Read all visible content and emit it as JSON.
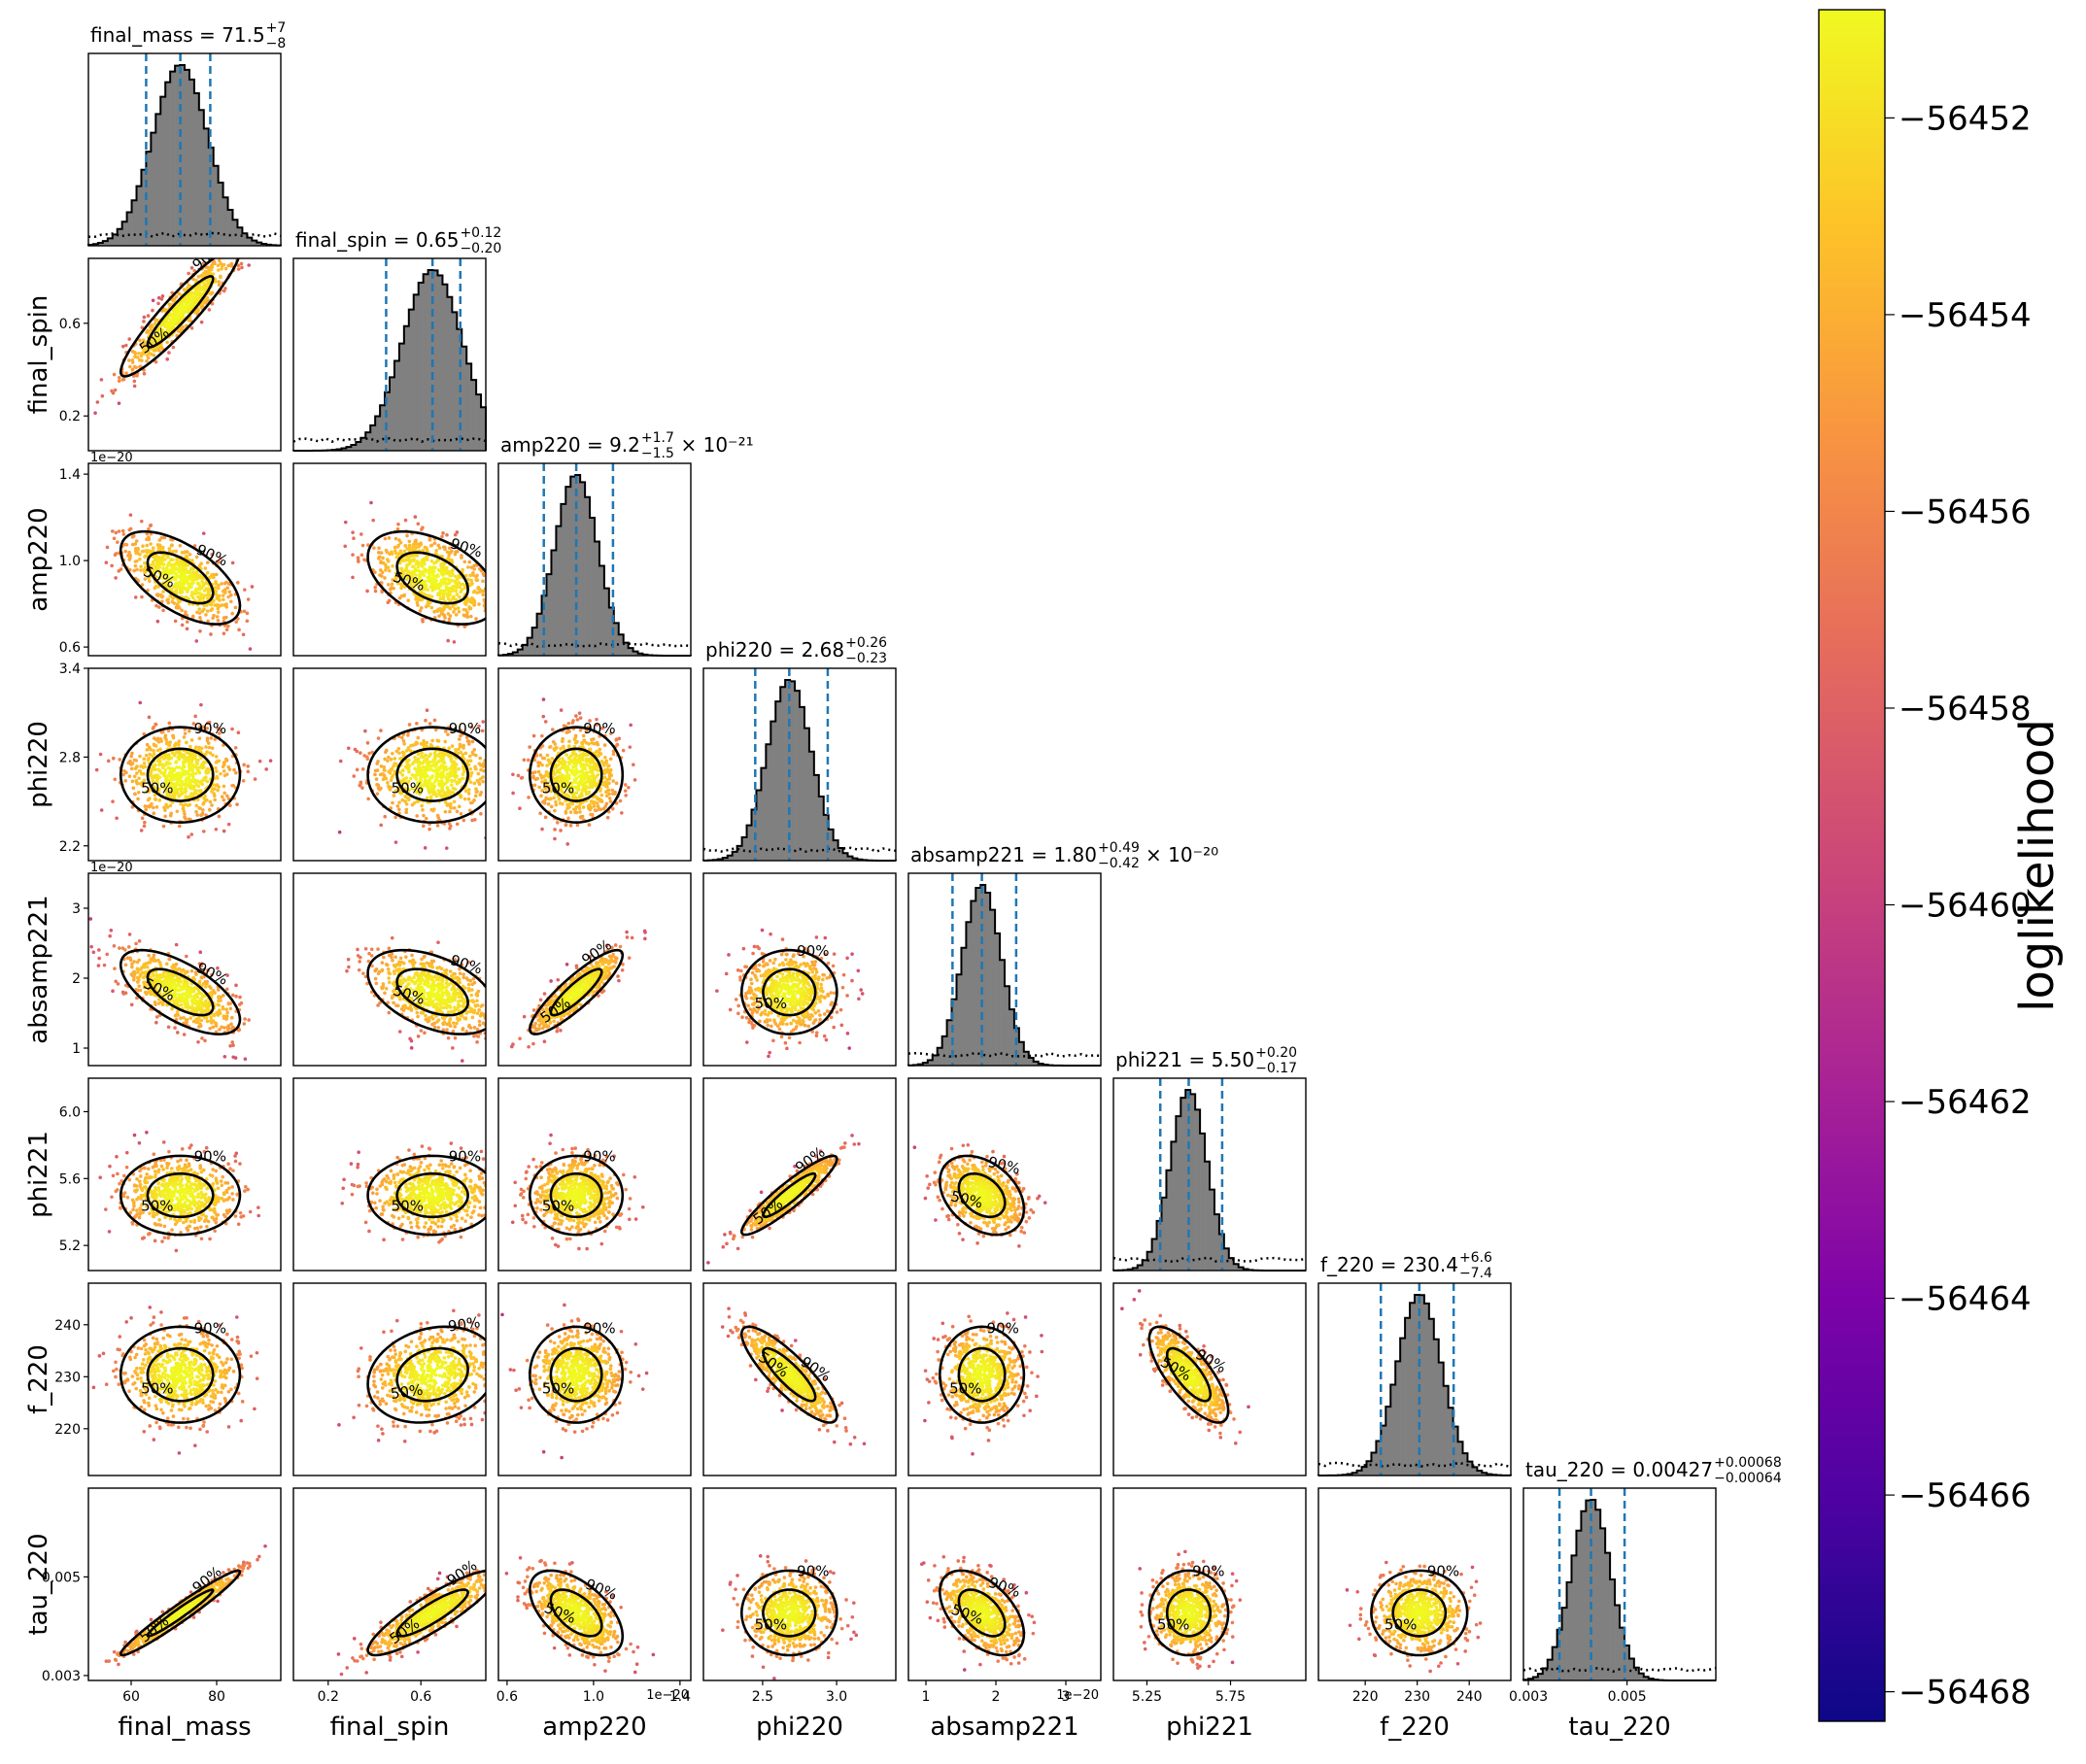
{
  "chart_data": {
    "type": "corner",
    "colormap": "plasma",
    "colorbar": {
      "label": "loglikelihood",
      "ticks": [
        "−56452",
        "−56454",
        "−56456",
        "−56458",
        "−56460",
        "−56462",
        "−56464",
        "−56466",
        "−56468"
      ],
      "tick_values": [
        -56452,
        -56454,
        -56456,
        -56458,
        -56460,
        -56462,
        -56464,
        -56466,
        -56468
      ],
      "range": [
        -56468.3,
        -56450.9
      ]
    },
    "contour_levels": [
      "50%",
      "90%"
    ],
    "parameters": [
      {
        "name": "final_mass",
        "median_text": "71.5",
        "upper": "+7",
        "lower": "−8",
        "exp": "",
        "range": [
          50,
          95
        ],
        "median": 71.5,
        "sd": 6.5,
        "ticks": [
          60,
          80
        ],
        "tick_labels": [
          "60",
          "80"
        ],
        "offset_text": ""
      },
      {
        "name": "final_spin",
        "median_text": "0.65",
        "upper": "+0.12",
        "lower": "−0.20",
        "exp": "",
        "range": [
          0.05,
          0.88
        ],
        "median": 0.65,
        "sd": 0.13,
        "ticks": [
          0.2,
          0.6
        ],
        "tick_labels": [
          "0.2",
          "0.6"
        ],
        "offset_text": ""
      },
      {
        "name": "amp220",
        "median_text": "9.2",
        "upper": "+1.7",
        "lower": "−1.5",
        "exp": "× 10⁻²¹",
        "range": [
          0.56,
          1.45
        ],
        "median": 0.92,
        "sd": 0.1,
        "ticks": [
          0.6,
          1.0,
          1.4
        ],
        "tick_labels": [
          "0.6",
          "1.0",
          "1.4"
        ],
        "offset_text": "1e−20"
      },
      {
        "name": "phi220",
        "median_text": "2.68",
        "upper": "+0.26",
        "lower": "−0.23",
        "exp": "",
        "range": [
          2.1,
          3.4
        ],
        "median": 2.68,
        "sd": 0.15,
        "ticks": [
          2.5,
          3.0
        ],
        "tick_labels": [
          "2.5",
          "3.0"
        ],
        "offset_text": ""
      },
      {
        "name": "absamp221",
        "median_text": "1.80",
        "upper": "+0.49",
        "lower": "−0.42",
        "exp": "× 10⁻²⁰",
        "range": [
          0.75,
          3.5
        ],
        "median": 1.8,
        "sd": 0.28,
        "ticks": [
          1,
          2,
          3
        ],
        "tick_labels": [
          "1",
          "2",
          "3"
        ],
        "offset_text": "1e−20"
      },
      {
        "name": "phi221",
        "median_text": "5.50",
        "upper": "+0.20",
        "lower": "−0.17",
        "exp": "",
        "range": [
          5.05,
          6.2
        ],
        "median": 5.5,
        "sd": 0.11,
        "ticks": [
          5.25,
          5.75
        ],
        "tick_labels": [
          "5.25",
          "5.75"
        ],
        "offset_text": ""
      },
      {
        "name": "f_220",
        "median_text": "230.4",
        "upper": "+6.6",
        "lower": "−7.4",
        "exp": "",
        "range": [
          211,
          248
        ],
        "median": 230.4,
        "sd": 4.3,
        "ticks": [
          220,
          230,
          240
        ],
        "tick_labels": [
          "220",
          "230",
          "240"
        ],
        "offset_text": ""
      },
      {
        "name": "tau_220",
        "median_text": "0.00427",
        "upper": "+0.00068",
        "lower": "−0.00064",
        "exp": "",
        "range": [
          0.0029,
          0.0068
        ],
        "median": 0.00427,
        "sd": 0.0004,
        "ticks": [
          0.003,
          0.005
        ],
        "tick_labels": [
          "0.003",
          "0.005"
        ],
        "offset_text": ""
      }
    ],
    "y_tick_labels": {
      "final_spin": [
        "0.2",
        "0.6"
      ],
      "amp220": [
        "0.6",
        "1.0",
        "1.4"
      ],
      "phi220": [
        "2.2",
        "2.8",
        "3.4"
      ],
      "absamp221": [
        "1",
        "2",
        "3"
      ],
      "phi221": [
        "5.2",
        "5.6",
        "6.0"
      ],
      "f_220": [
        "220",
        "230",
        "240"
      ],
      "tau_220": [
        "0.003",
        "0.005"
      ]
    },
    "y_tick_values": {
      "final_spin": [
        0.2,
        0.6
      ],
      "amp220": [
        0.6,
        1.0,
        1.4
      ],
      "phi220": [
        2.2,
        2.8,
        3.4
      ],
      "absamp221": [
        1,
        2,
        3
      ],
      "phi221": [
        5.2,
        5.6,
        6.0
      ],
      "f_220": [
        220,
        230,
        240
      ],
      "tau_220": [
        0.003,
        0.005
      ]
    },
    "correlations": [
      [
        1,
        0.93,
        -0.6,
        0.0,
        -0.65,
        0.0,
        0.0,
        0.97
      ],
      [
        0.93,
        1,
        -0.45,
        0.0,
        -0.45,
        0.0,
        0.2,
        0.88
      ],
      [
        -0.6,
        -0.45,
        1,
        0.0,
        0.88,
        0.0,
        0.0,
        -0.55
      ],
      [
        0.0,
        0.0,
        0.0,
        1,
        0.0,
        0.92,
        -0.85,
        0.0
      ],
      [
        -0.65,
        -0.45,
        0.88,
        0.0,
        1,
        -0.35,
        0.0,
        -0.5
      ],
      [
        0.0,
        0.0,
        0.0,
        0.92,
        -0.35,
        1,
        -0.75,
        0.0
      ],
      [
        0.0,
        0.2,
        0.0,
        -0.85,
        0.0,
        -0.75,
        1,
        0.0
      ],
      [
        0.97,
        0.88,
        -0.55,
        0.0,
        -0.5,
        0.0,
        0.0,
        1
      ]
    ],
    "histogram": {
      "bar_color": "#808080",
      "edge_color": "#000000",
      "quantile_line_color": "#1f77b4",
      "prior_line": "dotted"
    }
  }
}
